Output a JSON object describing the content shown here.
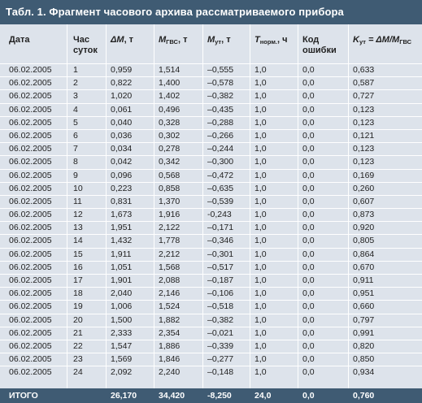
{
  "title": "Табл. 1. Фрагмент часового архива рассматриваемого прибора",
  "headers": {
    "date": "Дата",
    "hour_line1": "Час",
    "hour_line2": "суток",
    "dm_sym": "ΔM",
    "dm_unit": ", т",
    "mgvs_sym": "M",
    "mgvs_sub": "ГВС",
    "mgvs_unit": ", т",
    "mut_sym": "M",
    "mut_sub": "ут",
    "mut_unit": ", т",
    "tnorm_sym": "T",
    "tnorm_sub": "норм.",
    "tnorm_unit": ", ч",
    "code_line1": "Код",
    "code_line2": "ошибки",
    "kut_sym": "K",
    "kut_sub": "ут",
    "kut_eq": " = ΔM/M",
    "kut_sub2": "ГВС"
  },
  "rows": [
    [
      "06.02.2005",
      "1",
      "0,959",
      "1,514",
      "–0,555",
      "1,0",
      "0,0",
      "0,633"
    ],
    [
      "06.02.2005",
      "2",
      "0,822",
      "1,400",
      "–0,578",
      "1,0",
      "0,0",
      "0,587"
    ],
    [
      "06.02.2005",
      "3",
      "1,020",
      "1,402",
      "–0,382",
      "1,0",
      "0,0",
      "0,727"
    ],
    [
      "06.02.2005",
      "4",
      "0,061",
      "0,496",
      "–0,435",
      "1,0",
      "0,0",
      "0,123"
    ],
    [
      "06.02.2005",
      "5",
      "0,040",
      "0,328",
      "–0,288",
      "1,0",
      "0,0",
      "0,123"
    ],
    [
      "06.02.2005",
      "6",
      "0,036",
      "0,302",
      "–0,266",
      "1,0",
      "0,0",
      "0,121"
    ],
    [
      "06.02.2005",
      "7",
      "0,034",
      "0,278",
      "–0,244",
      "1,0",
      "0,0",
      "0,123"
    ],
    [
      "06.02.2005",
      "8",
      "0,042",
      "0,342",
      "–0,300",
      "1,0",
      "0,0",
      "0,123"
    ],
    [
      "06.02.2005",
      "9",
      "0,096",
      "0,568",
      "–0,472",
      "1,0",
      "0,0",
      "0,169"
    ],
    [
      "06.02.2005",
      "10",
      "0,223",
      "0,858",
      "–0,635",
      "1,0",
      "0,0",
      "0,260"
    ],
    [
      "06.02.2005",
      "11",
      "0,831",
      "1,370",
      "–0,539",
      "1,0",
      "0,0",
      "0,607"
    ],
    [
      "06.02.2005",
      "12",
      "1,673",
      "1,916",
      "-0,243",
      "1,0",
      "0,0",
      "0,873"
    ],
    [
      "06.02.2005",
      "13",
      "1,951",
      "2,122",
      "–0,171",
      "1,0",
      "0,0",
      "0,920"
    ],
    [
      "06.02.2005",
      "14",
      "1,432",
      "1,778",
      "–0,346",
      "1,0",
      "0,0",
      "0,805"
    ],
    [
      "06.02.2005",
      "15",
      "1,911",
      "2,212",
      "–0,301",
      "1,0",
      "0,0",
      "0,864"
    ],
    [
      "06.02.2005",
      "16",
      "1,051",
      "1,568",
      "–0,517",
      "1,0",
      "0,0",
      "0,670"
    ],
    [
      "06.02.2005",
      "17",
      "1,901",
      "2,088",
      "–0,187",
      "1,0",
      "0,0",
      "0,911"
    ],
    [
      "06.02.2005",
      "18",
      "2,040",
      "2,146",
      "–0,106",
      "1,0",
      "0,0",
      "0,951"
    ],
    [
      "06.02.2005",
      "19",
      "1,006",
      "1,524",
      "–0,518",
      "1,0",
      "0,0",
      "0,660"
    ],
    [
      "06.02.2005",
      "20",
      "1,500",
      "1,882",
      "–0,382",
      "1,0",
      "0,0",
      "0,797"
    ],
    [
      "06.02.2005",
      "21",
      "2,333",
      "2,354",
      "–0,021",
      "1,0",
      "0,0",
      "0,991"
    ],
    [
      "06.02.2005",
      "22",
      "1,547",
      "1,886",
      "–0,339",
      "1,0",
      "0,0",
      "0,820"
    ],
    [
      "06.02.2005",
      "23",
      "1,569",
      "1,846",
      "–0,277",
      "1,0",
      "0,0",
      "0,850"
    ],
    [
      "06.02.2005",
      "24",
      "2,092",
      "2,240",
      "–0,148",
      "1,0",
      "0,0",
      "0,934"
    ]
  ],
  "total": [
    "ИТОГО",
    "",
    "26,170",
    "34,420",
    "-8,250",
    "24,0",
    "0,0",
    "0,760"
  ]
}
